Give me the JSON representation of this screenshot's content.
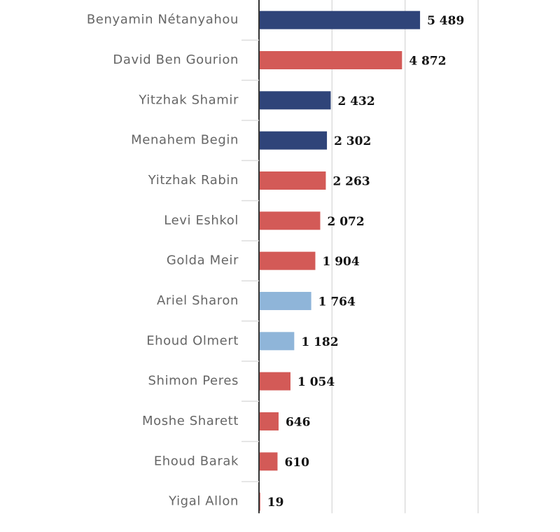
{
  "chart_data": {
    "type": "hbar",
    "categories": [
      "Benyamin Nétanyahou",
      "David Ben Gourion",
      "Yitzhak Shamir",
      "Menahem Begin",
      "Yitzhak Rabin",
      "Levi Eshkol",
      "Golda Meir",
      "Ariel Sharon",
      "Ehoud Olmert",
      "Shimon Peres",
      "Moshe Sharett",
      "Ehoud Barak",
      "Yigal Allon"
    ],
    "values": [
      5489,
      4872,
      2432,
      2302,
      2263,
      2072,
      1904,
      1764,
      1182,
      1054,
      646,
      610,
      19
    ],
    "value_labels": [
      "5 489",
      "4 872",
      "2 432",
      "2 302",
      "2 263",
      "2 072",
      "1 904",
      "1 764",
      "1 182",
      "1 054",
      "646",
      "610",
      "19"
    ],
    "colors": [
      "#2f4479",
      "#d35a57",
      "#2f4479",
      "#2f4479",
      "#d35a57",
      "#d35a57",
      "#d35a57",
      "#8fb5d9",
      "#8fb5d9",
      "#d35a57",
      "#d35a57",
      "#d35a57",
      "#d35a57"
    ],
    "xlim": [
      0,
      7500
    ],
    "xticks": [
      0,
      2500,
      5000,
      7500
    ],
    "grid": true
  }
}
